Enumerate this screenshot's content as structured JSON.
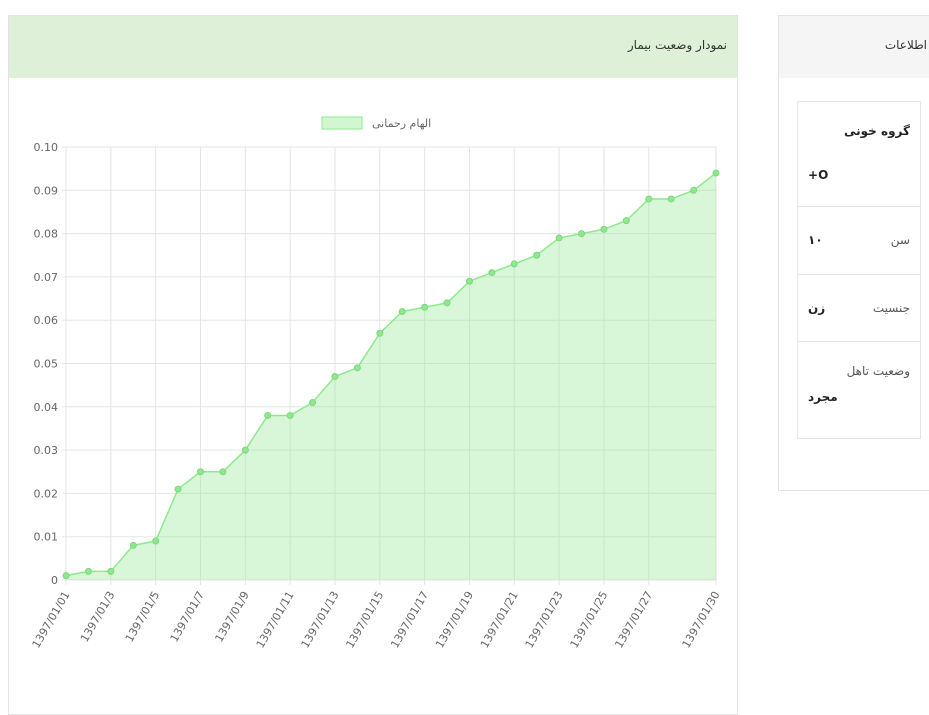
{
  "chart_panel": {
    "title": "نمودار وضعیت بیمار"
  },
  "chart_data": {
    "type": "line",
    "legend": "top",
    "categories": [
      "1397/01/01",
      null,
      "1397/01/3",
      null,
      "1397/01/5",
      null,
      "1397/01/7",
      null,
      "1397/01/9",
      null,
      "1397/01/11",
      null,
      "1397/01/13",
      null,
      "1397/01/15",
      null,
      "1397/01/17",
      null,
      "1397/01/19",
      null,
      "1397/01/21",
      null,
      "1397/01/23",
      null,
      "1397/01/25",
      null,
      "1397/01/27",
      null,
      null,
      "1397/01/30"
    ],
    "series": [
      {
        "name": "الهام رحمانی",
        "color": "#8ee98e",
        "values": [
          0.001,
          0.002,
          0.002,
          0.008,
          0.009,
          0.021,
          0.025,
          0.025,
          0.03,
          0.038,
          0.038,
          0.041,
          0.047,
          0.049,
          0.057,
          0.062,
          0.063,
          0.064,
          0.069,
          0.071,
          0.073,
          0.075,
          0.079,
          0.08,
          0.081,
          0.083,
          0.088,
          0.088,
          0.09,
          0.094
        ]
      }
    ],
    "ylim": [
      0,
      0.1
    ],
    "yticks": [
      0,
      0.01,
      0.02,
      0.03,
      0.04,
      0.05,
      0.06,
      0.07,
      0.08,
      0.09,
      {
        "value": 0.1,
        "label": "0.10"
      }
    ],
    "grid": true
  },
  "info_panel": {
    "title": "اطلاعات",
    "rows": [
      [
        "گروه خونی",
        "O+"
      ],
      [
        "سن",
        "۱۰"
      ],
      [
        "جنسیت",
        "زن"
      ],
      [
        "وضعیت تاهل",
        "مجرد"
      ]
    ]
  }
}
